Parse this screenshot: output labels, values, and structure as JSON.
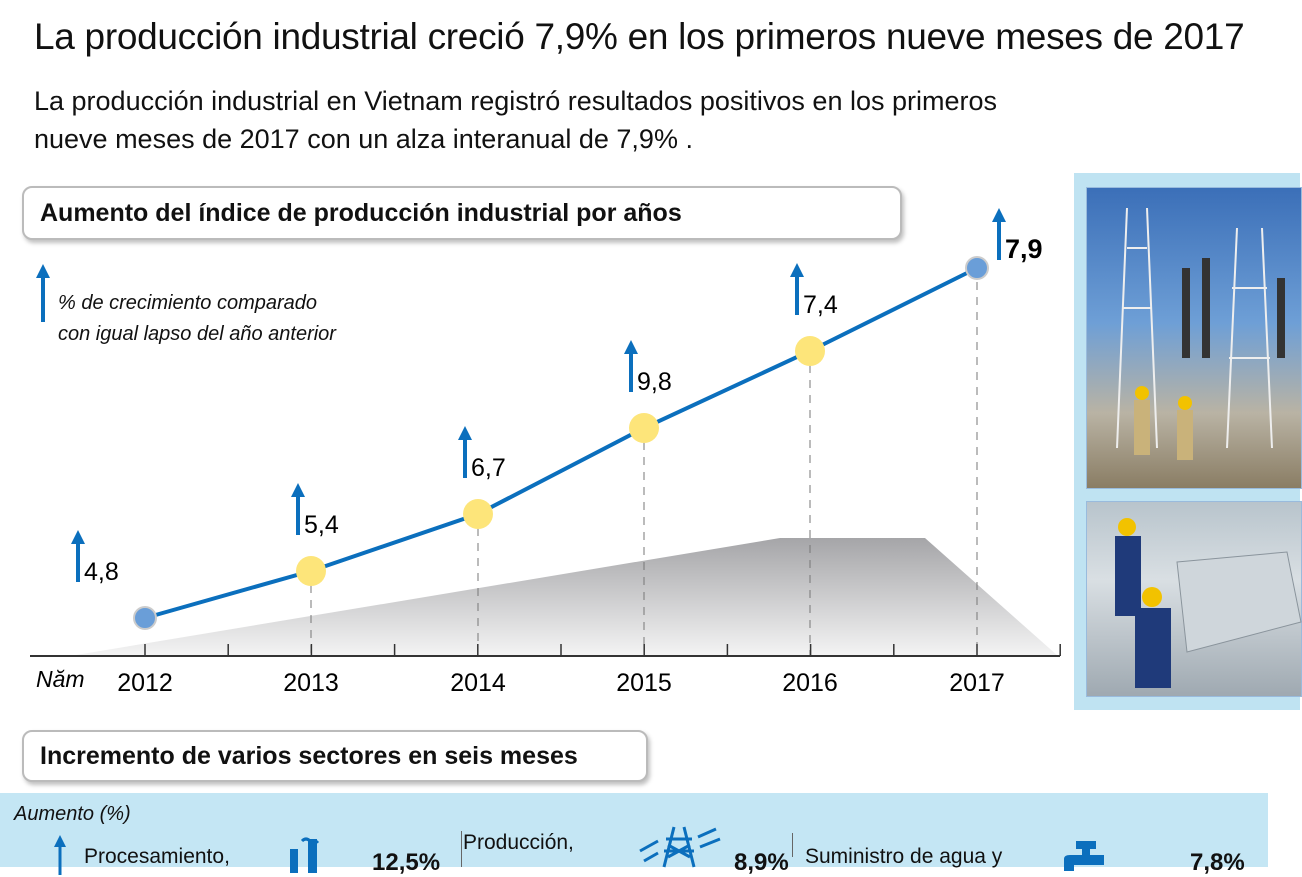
{
  "header": {
    "title": "La producción industrial creció 7,9% en los primeros nueve meses de 2017",
    "subtitle": "La producción industrial en Vietnam registró resultados positivos en los primeros nueve meses de 2017 con un alza interanual de 7,9% ."
  },
  "section1": {
    "title": "Aumento del índice de producción industrial por años"
  },
  "chart_data": {
    "type": "line",
    "title": "Aumento del índice de producción industrial por años",
    "legend": "% de crecimiento comparado con igual lapso del año anterior",
    "legend_line1": "% de crecimiento comparado",
    "legend_line2": "con igual lapso del año anterior",
    "xlabel": "Năm",
    "categories": [
      "2012",
      "2013",
      "2014",
      "2015",
      "2016",
      "2017"
    ],
    "values": [
      4.8,
      5.4,
      6.7,
      9.8,
      7.4,
      7.9
    ],
    "labels": [
      "4,8",
      "5,4",
      "6,7",
      "9,8",
      "7,4",
      "7,9"
    ],
    "colors": {
      "line": "#0b6fbd",
      "point_end": "#6a9ed8",
      "point_mid": "#fde57a",
      "arrow": "#0b6fbd"
    },
    "grid": false
  },
  "section2": {
    "title": "Incremento de varios sectores en seis meses",
    "unit_label": "Aumento (%)",
    "sectors": [
      {
        "label": "Procesamiento,",
        "value": "12,5%",
        "icon": "factory-icon"
      },
      {
        "label": "Producción,",
        "value": "8,9%",
        "icon": "power-tower-icon"
      },
      {
        "label": "Suministro de agua y",
        "value": "7,8%",
        "icon": "water-tap-icon"
      }
    ]
  },
  "colors": {
    "band": "#c4e6f4",
    "accent": "#0b6fbd"
  }
}
